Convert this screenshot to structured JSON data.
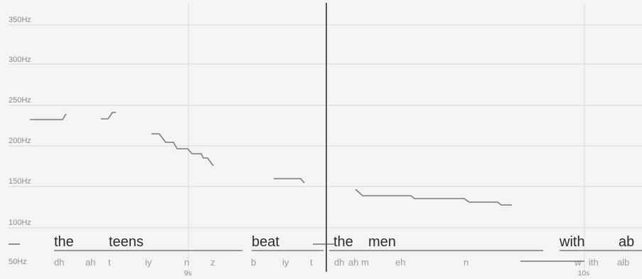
{
  "y_axis": {
    "labels": [
      "350Hz",
      "300Hz",
      "250Hz",
      "200Hz",
      "150Hz",
      "100Hz",
      "50Hz"
    ]
  },
  "time_axis": {
    "labels": [
      "9s",
      "10s"
    ]
  },
  "words": [
    "the",
    "teens",
    "beat",
    "the",
    "men",
    "with",
    "ab"
  ],
  "phones": [
    "dh",
    "ah",
    "t",
    "iy",
    "n",
    "z",
    "b",
    "iy",
    "t",
    "dh",
    "ah",
    "m",
    "eh",
    "n",
    "w",
    "ith",
    "alb"
  ],
  "colors": {
    "background": "#f4f4f4",
    "grid": "#d6d6d6",
    "pitch": "#7a7a7a",
    "cursor": "#555555"
  }
}
